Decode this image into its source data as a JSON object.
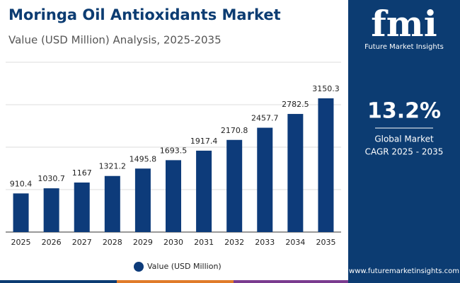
{
  "chart_data": {
    "type": "bar",
    "title": "Moringa Oil Antioxidants Market",
    "subtitle": "Value (USD Million) Analysis, 2025-2035",
    "categories": [
      "2025",
      "2026",
      "2027",
      "2028",
      "2029",
      "2030",
      "2031",
      "2032",
      "2033",
      "2034",
      "2035"
    ],
    "series": [
      {
        "name": "Value (USD Million)",
        "color": "#0d3b7a",
        "values": [
          910.4,
          1030.7,
          1167,
          1321.2,
          1495.8,
          1693.5,
          1917.4,
          2170.8,
          2457.7,
          2782.5,
          3150.3
        ]
      }
    ],
    "ylim": [
      0,
      4000
    ],
    "yticks": [
      0,
      1000,
      2000,
      3000,
      4000
    ],
    "grid": true,
    "legend": "bottom"
  },
  "sidebar": {
    "logo": "fmi",
    "brand": "Future Market Insights",
    "cagr": "13.2%",
    "cagr_label": [
      "Global Market",
      "CAGR 2025 - 2035"
    ],
    "website": "www.futuremarketinsights.com"
  }
}
